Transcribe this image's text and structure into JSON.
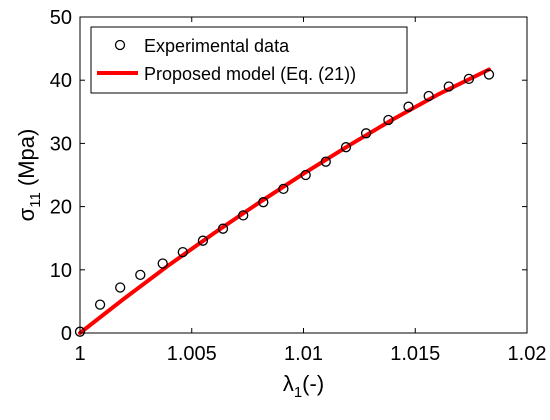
{
  "chart_data": {
    "type": "scatter",
    "title": "",
    "xlabel": "λ1(-)",
    "xlabel_parts": {
      "symbol": "λ",
      "sub": "1",
      "suffix": "(-)"
    },
    "ylabel": "σ11 (Mpa)",
    "ylabel_parts": {
      "symbol": "σ",
      "sub": "11",
      "suffix": " (Mpa)"
    },
    "xlim": [
      1,
      1.02
    ],
    "ylim": [
      0,
      50
    ],
    "xticks": [
      1,
      1.005,
      1.01,
      1.015,
      1.02
    ],
    "xtick_labels": [
      "1",
      "1.005",
      "1.01",
      "1.015",
      "1.02"
    ],
    "yticks": [
      0,
      10,
      20,
      30,
      40,
      50
    ],
    "ytick_labels": [
      "0",
      "10",
      "20",
      "30",
      "40",
      "50"
    ],
    "grid": false,
    "legend_position": "top-left",
    "series": [
      {
        "name": "Experimental data",
        "kind": "markers",
        "marker": "open-circle",
        "color": "#000000",
        "x": [
          1.0,
          1.0009,
          1.0018,
          1.0027,
          1.0037,
          1.0046,
          1.0055,
          1.0064,
          1.0073,
          1.0082,
          1.0091,
          1.0101,
          1.011,
          1.0119,
          1.0128,
          1.0138,
          1.0147,
          1.0156,
          1.0165,
          1.0174,
          1.0183
        ],
        "y": [
          0.2,
          4.5,
          7.2,
          9.2,
          11.0,
          12.8,
          14.6,
          16.5,
          18.6,
          20.7,
          22.8,
          25.0,
          27.1,
          29.4,
          31.6,
          33.7,
          35.8,
          37.5,
          39.0,
          40.2,
          40.9
        ]
      },
      {
        "name": "Proposed model (Eq. (21))",
        "kind": "line",
        "color": "#ff0000",
        "x": [
          1.0,
          1.002,
          1.004,
          1.006,
          1.008,
          1.01,
          1.012,
          1.014,
          1.016,
          1.0183
        ],
        "y": [
          0.0,
          5.5,
          10.8,
          15.8,
          20.6,
          25.2,
          29.6,
          33.8,
          37.7,
          41.7
        ]
      }
    ]
  }
}
